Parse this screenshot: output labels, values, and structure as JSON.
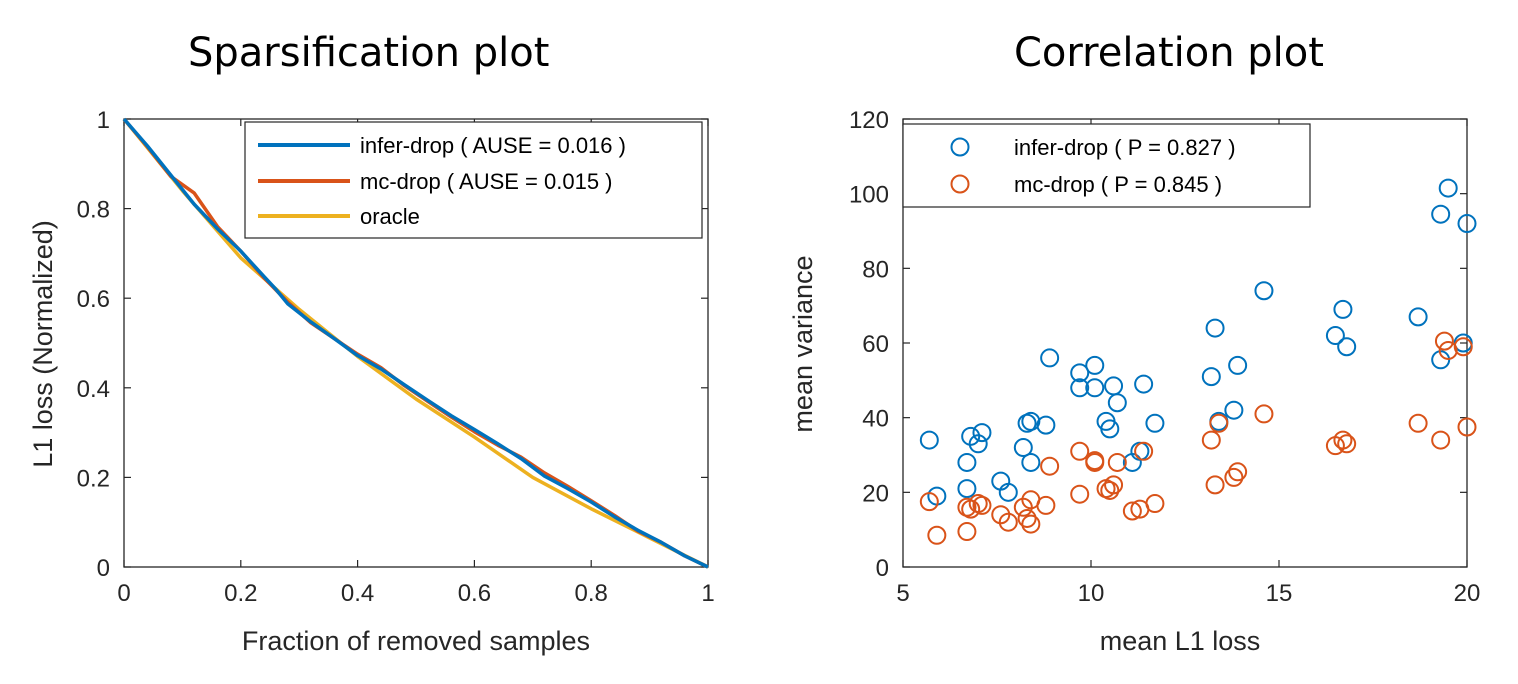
{
  "titles": {
    "left": "Sparsification plot",
    "right": "Correlation plot"
  },
  "colors": {
    "blue": "#0072BD",
    "orange": "#D95319",
    "yellow": "#EDB120",
    "axis": "#262626"
  },
  "chart_data": [
    {
      "type": "line",
      "title": "Sparsification plot",
      "xlabel": "Fraction of removed samples",
      "ylabel": "L1 loss (Normalized)",
      "xlim": [
        0,
        1
      ],
      "ylim": [
        0,
        1
      ],
      "xticks": [
        0,
        0.2,
        0.4,
        0.6,
        0.8,
        1
      ],
      "xtick_labels": [
        "0",
        "0.2",
        "0.4",
        "0.6",
        "0.8",
        "1"
      ],
      "yticks": [
        0,
        0.2,
        0.4,
        0.6,
        0.8,
        1
      ],
      "ytick_labels": [
        "0",
        "0.2",
        "0.4",
        "0.6",
        "0.8",
        "1"
      ],
      "legend_position": "top-right",
      "series": [
        {
          "name": "infer-drop ( AUSE = 0.016 )",
          "color": "#0072BD",
          "x": [
            0,
            0.04,
            0.08,
            0.12,
            0.16,
            0.2,
            0.24,
            0.26,
            0.28,
            0.32,
            0.36,
            0.4,
            0.44,
            0.48,
            0.52,
            0.56,
            0.6,
            0.64,
            0.68,
            0.72,
            0.76,
            0.8,
            0.84,
            0.88,
            0.92,
            0.96,
            1
          ],
          "y": [
            1,
            0.94,
            0.875,
            0.81,
            0.755,
            0.705,
            0.648,
            0.62,
            0.588,
            0.547,
            0.51,
            0.472,
            0.442,
            0.407,
            0.372,
            0.338,
            0.307,
            0.275,
            0.242,
            0.203,
            0.175,
            0.145,
            0.112,
            0.082,
            0.055,
            0.025,
            0
          ]
        },
        {
          "name": "mc-drop ( AUSE = 0.015 )",
          "color": "#D95319",
          "x": [
            0,
            0.04,
            0.08,
            0.12,
            0.16,
            0.2,
            0.24,
            0.28,
            0.32,
            0.36,
            0.4,
            0.44,
            0.48,
            0.52,
            0.56,
            0.6,
            0.64,
            0.68,
            0.72,
            0.76,
            0.8,
            0.84,
            0.88,
            0.92,
            0.96,
            1
          ],
          "y": [
            1,
            0.938,
            0.872,
            0.835,
            0.76,
            0.705,
            0.645,
            0.592,
            0.545,
            0.51,
            0.475,
            0.445,
            0.405,
            0.37,
            0.335,
            0.302,
            0.272,
            0.245,
            0.21,
            0.18,
            0.148,
            0.115,
            0.08,
            0.055,
            0.025,
            0
          ]
        },
        {
          "name": "oracle",
          "color": "#EDB120",
          "x": [
            0,
            0.1,
            0.2,
            0.3,
            0.4,
            0.5,
            0.6,
            0.7,
            0.8,
            0.9,
            1
          ],
          "y": [
            1,
            0.84,
            0.69,
            0.575,
            0.47,
            0.375,
            0.29,
            0.2,
            0.13,
            0.065,
            0
          ]
        }
      ]
    },
    {
      "type": "scatter",
      "title": "Correlation plot",
      "xlabel": "mean L1 loss",
      "ylabel": "mean variance",
      "xlim": [
        5,
        20
      ],
      "ylim": [
        0,
        120
      ],
      "xticks": [
        5,
        10,
        15,
        20
      ],
      "xtick_labels": [
        "5",
        "10",
        "15",
        "20"
      ],
      "yticks": [
        0,
        20,
        40,
        60,
        80,
        100,
        120
      ],
      "ytick_labels": [
        "0",
        "20",
        "40",
        "60",
        "80",
        "100",
        "120"
      ],
      "legend_position": "top-left",
      "marker": "circle-open",
      "series": [
        {
          "name": "infer-drop ( P = 0.827 )",
          "color": "#0072BD",
          "points": [
            [
              5.7,
              34
            ],
            [
              5.9,
              19
            ],
            [
              6.7,
              28
            ],
            [
              6.7,
              21
            ],
            [
              6.8,
              35
            ],
            [
              7.0,
              33
            ],
            [
              7.1,
              36
            ],
            [
              7.6,
              23
            ],
            [
              7.8,
              20
            ],
            [
              8.2,
              32
            ],
            [
              8.3,
              38.5
            ],
            [
              8.4,
              28
            ],
            [
              8.4,
              39
            ],
            [
              8.8,
              38
            ],
            [
              8.9,
              56
            ],
            [
              9.7,
              52
            ],
            [
              9.7,
              48
            ],
            [
              10.1,
              54
            ],
            [
              10.1,
              48
            ],
            [
              10.4,
              39
            ],
            [
              10.5,
              37
            ],
            [
              10.6,
              48.5
            ],
            [
              10.7,
              44
            ],
            [
              11.1,
              28
            ],
            [
              11.3,
              31
            ],
            [
              11.4,
              49
            ],
            [
              11.7,
              38.5
            ],
            [
              13.2,
              51
            ],
            [
              13.3,
              64
            ],
            [
              13.4,
              39
            ],
            [
              13.8,
              42
            ],
            [
              13.9,
              54
            ],
            [
              14.6,
              74
            ],
            [
              16.5,
              62
            ],
            [
              16.7,
              69
            ],
            [
              16.8,
              59
            ],
            [
              18.7,
              67
            ],
            [
              19.3,
              55.5
            ],
            [
              19.3,
              94.5
            ],
            [
              19.5,
              101.5
            ],
            [
              19.9,
              60
            ],
            [
              20.0,
              92
            ]
          ]
        },
        {
          "name": "mc-drop ( P = 0.845 )",
          "color": "#D95319",
          "points": [
            [
              5.7,
              17.5
            ],
            [
              5.9,
              8.5
            ],
            [
              6.7,
              16
            ],
            [
              6.7,
              9.5
            ],
            [
              6.8,
              15.5
            ],
            [
              7.0,
              17
            ],
            [
              7.1,
              16.5
            ],
            [
              7.6,
              14
            ],
            [
              7.8,
              12
            ],
            [
              8.2,
              16
            ],
            [
              8.3,
              13
            ],
            [
              8.4,
              11.5
            ],
            [
              8.4,
              18
            ],
            [
              8.8,
              16.5
            ],
            [
              8.9,
              27
            ],
            [
              9.7,
              31
            ],
            [
              9.7,
              19.5
            ],
            [
              10.1,
              28.5
            ],
            [
              10.1,
              28
            ],
            [
              10.4,
              21
            ],
            [
              10.5,
              20.5
            ],
            [
              10.6,
              22
            ],
            [
              10.7,
              28
            ],
            [
              11.1,
              15
            ],
            [
              11.3,
              15.5
            ],
            [
              11.4,
              31
            ],
            [
              11.7,
              17
            ],
            [
              13.2,
              34
            ],
            [
              13.3,
              22
            ],
            [
              13.4,
              38.5
            ],
            [
              13.8,
              24
            ],
            [
              13.9,
              25.5
            ],
            [
              14.6,
              41
            ],
            [
              16.5,
              32.5
            ],
            [
              16.7,
              34
            ],
            [
              16.8,
              33
            ],
            [
              18.7,
              38.5
            ],
            [
              19.3,
              34
            ],
            [
              19.4,
              60.5
            ],
            [
              19.5,
              58
            ],
            [
              19.9,
              59
            ],
            [
              20.0,
              37.5
            ]
          ]
        }
      ]
    }
  ]
}
